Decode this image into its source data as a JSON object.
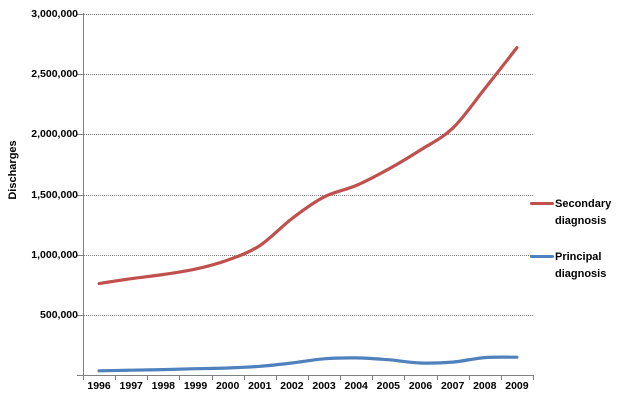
{
  "chart_data": {
    "type": "line",
    "title": "",
    "ylabel": "Discharges",
    "xlabel": "",
    "categories": [
      "1996",
      "1997",
      "1998",
      "1999",
      "2000",
      "2001",
      "2002",
      "2003",
      "2004",
      "2005",
      "2006",
      "2007",
      "2008",
      "2009"
    ],
    "series": [
      {
        "name": "Secondary diagnosis",
        "color": "#c0504d",
        "values": [
          760000,
          800000,
          835000,
          880000,
          955000,
          1075000,
          1300000,
          1480000,
          1575000,
          1710000,
          1870000,
          2050000,
          2380000,
          2720000
        ]
      },
      {
        "name": "Principal diagnosis",
        "color": "#4f81bd",
        "values": [
          35000,
          40000,
          45000,
          52000,
          58000,
          72000,
          100000,
          135000,
          142000,
          127000,
          100000,
          107000,
          145000,
          148000
        ]
      }
    ],
    "ylim": [
      0,
      3000000
    ],
    "y_ticks": [
      {
        "label": "500,000",
        "value": 500000
      },
      {
        "label": "1,000,000",
        "value": 1000000
      },
      {
        "label": "1,500,000",
        "value": 1500000
      },
      {
        "label": "2,000,000",
        "value": 2000000
      },
      {
        "label": "2,500,000",
        "value": 2500000
      },
      {
        "label": "3,000,000",
        "value": 3000000
      }
    ],
    "grid": true,
    "legend_position": "right",
    "smooth_lines": true
  },
  "legend": {
    "entries": [
      {
        "label": "Secondary diagnosis",
        "color": "#c0504d"
      },
      {
        "label": "Principal diagnosis",
        "color": "#4f81bd"
      }
    ]
  },
  "colors": {
    "axis": "#808080",
    "gridline": "#7f7f7f",
    "background": "#ffffff",
    "text": "#000000"
  }
}
